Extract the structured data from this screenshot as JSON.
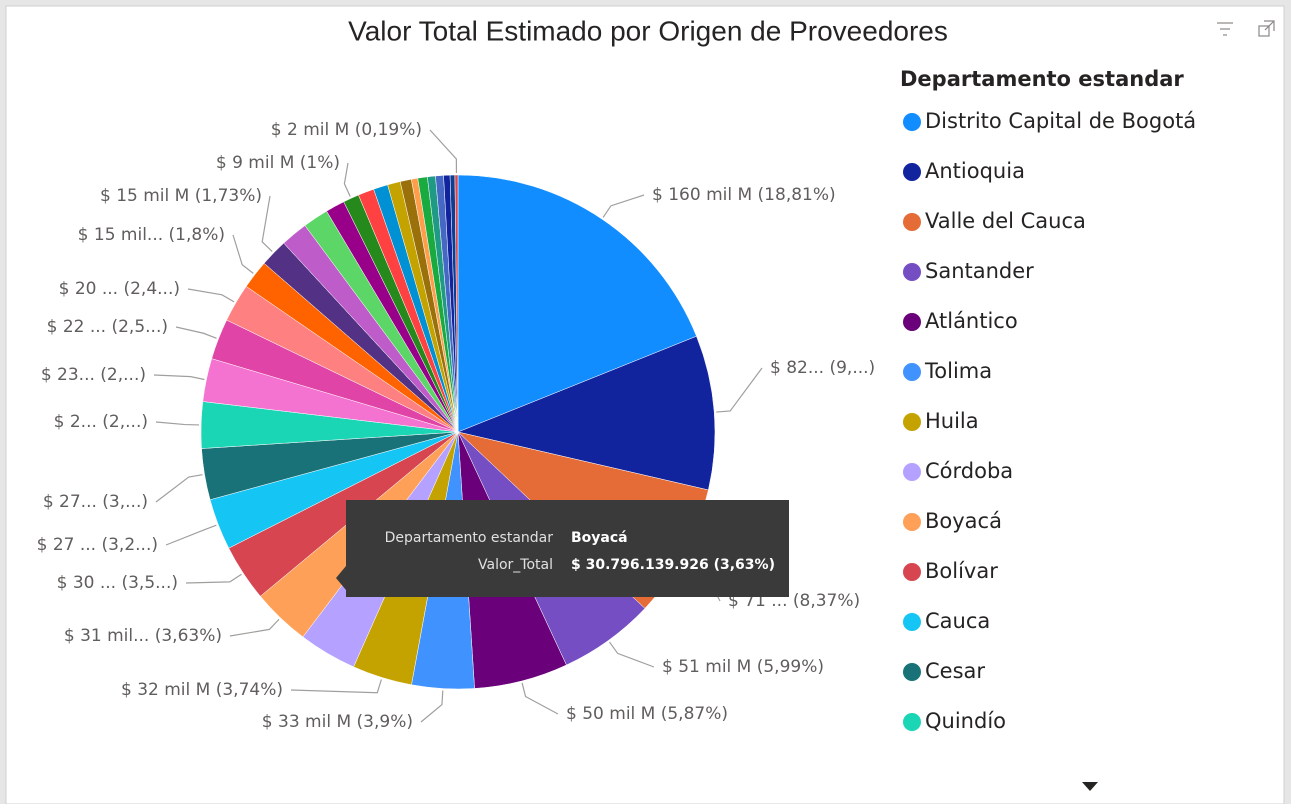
{
  "chart_data": {
    "type": "pie",
    "title": "Valor Total Estimado por Origen de Proveedores",
    "legend_title": "Departamento estandar",
    "legend_position": "right",
    "categories": [
      "Distrito Capital de Bogotá",
      "Antioquia",
      "Valle del Cauca",
      "Santander",
      "Atlántico",
      "Tolima",
      "Huila",
      "Córdoba",
      "Boyacá",
      "Bolívar",
      "Cauca",
      "Cesar",
      "Quindío",
      null,
      null,
      null,
      null,
      null,
      null,
      null,
      null,
      null,
      null,
      null,
      null,
      null,
      null,
      null,
      null,
      null,
      null,
      null,
      null
    ],
    "values": [
      18.81,
      9.64,
      8.37,
      5.99,
      5.87,
      3.9,
      3.74,
      3.63,
      3.63,
      3.55,
      3.2,
      3.2,
      2.9,
      2.7,
      2.55,
      2.4,
      1.8,
      1.73,
      1.7,
      1.6,
      1.2,
      1.0,
      1.0,
      0.9,
      0.8,
      0.7,
      0.4,
      0.6,
      0.5,
      0.5,
      0.4,
      0.3,
      0.19
    ],
    "value_labels": [
      "$ 160 mil M (18,81%)",
      "$ 82... (9,...)",
      "$ 71 ... (8,37%)",
      "$ 51 mil M (5,99%)",
      "$ 50 mil M (5,87%)",
      "$ 33 mil M (3,9%)",
      "$ 32 mil M (3,74%)",
      null,
      "$ 31 mil... (3,63%)",
      "$ 30 ... (3,5...)",
      "$ 27 ... (3,2...)",
      "$ 27... (3,...)",
      "$ 2... (2,...)",
      "$ 23... (2,...)",
      "$ 22 ... (2,5...)",
      "$ 20 ... (2,4...)",
      "$ 15 mil... (1,8%)",
      "$ 15 mil M (1,73%)",
      null,
      null,
      null,
      "$ 9 mil M (1%)",
      null,
      null,
      null,
      null,
      null,
      null,
      null,
      null,
      null,
      null,
      "$ 2 mil M (0,19%)"
    ],
    "colors": [
      "#118DFF",
      "#12239E",
      "#E66C37",
      "#744EC2",
      "#6B007B",
      "#4092FF",
      "#C4A200",
      "#B5A1FF",
      "#FFA058",
      "#D64550",
      "#15C6F4",
      "#197278",
      "#1AD6B4",
      "#F472D0",
      "#E044A7",
      "#FF8080",
      "#FF6300",
      "#533285",
      "#BE5DC9",
      "#5BD667",
      "#99008A",
      "#25891C",
      "#FF4141",
      "#0091D5",
      "#C4A200",
      "#99700A",
      "#FF9E4A",
      "#1AAB40",
      "#1F9A85",
      "#4668C5",
      "#12239E",
      "#0B3D91",
      "#D64550"
    ],
    "tooltip": {
      "rows": [
        {
          "label": "Departamento estandar",
          "value": "Boyacá"
        },
        {
          "label": "Valor_Total",
          "value": "$ 30.796.139.926 (3,63%)"
        }
      ]
    }
  }
}
